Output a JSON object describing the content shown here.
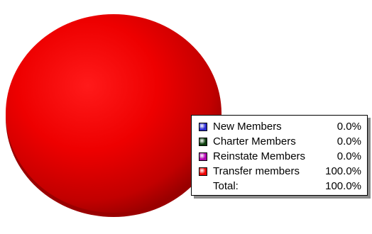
{
  "chart_data": {
    "type": "pie",
    "title": "",
    "legend_placement": "bottom-right",
    "slices": [
      {
        "label": "New Members",
        "value": 0.0,
        "display": "0.0%",
        "color": "#2a2ad0"
      },
      {
        "label": "Charter Members",
        "value": 0.0,
        "display": "0.0%",
        "color": "#0b3d0b"
      },
      {
        "label": "Reinstate Members",
        "value": 0.0,
        "display": "0.0%",
        "color": "#b000b0"
      },
      {
        "label": "Transfer members",
        "value": 100.0,
        "display": "100.0%",
        "color": "#ee0000"
      }
    ],
    "total": {
      "label": "Total:",
      "display": "100.0%"
    }
  }
}
